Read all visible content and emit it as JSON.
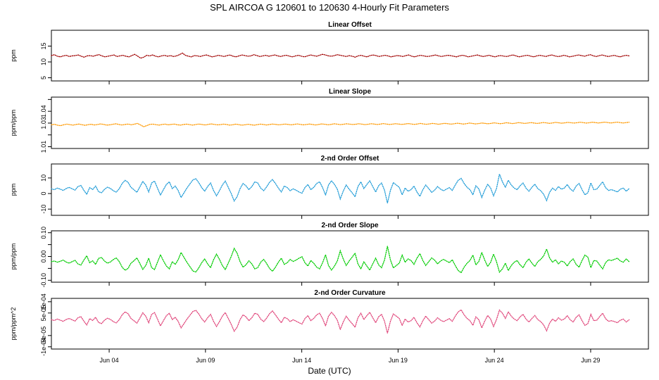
{
  "chart_data": {
    "type": "line",
    "title": "SPL   AIRCOA G   120601 to 120630   4-Hourly Fit Parameters",
    "xlabel": "Date (UTC)",
    "x_range": [
      "2012-06-01",
      "2012-07-02"
    ],
    "x_ticks": [
      "Jun 04",
      "Jun 09",
      "Jun 14",
      "Jun 19",
      "Jun 24",
      "Jun 29"
    ],
    "x_tick_dates": [
      "2012-06-04",
      "2012-06-09",
      "2012-06-14",
      "2012-06-19",
      "2012-06-24",
      "2012-06-29"
    ],
    "x_start": "2012-06-01",
    "x_end": "2012-07-01",
    "panels": [
      {
        "title": "Linear Offset",
        "ylabel": "ppm",
        "ylim": [
          4,
          20
        ],
        "yticks": [
          5,
          10,
          15
        ],
        "ytick_labels": [
          "5",
          "10",
          "15"
        ],
        "color": "#a00000",
        "series_style": "dotted",
        "values": [
          12.0,
          12.3,
          11.8,
          11.6,
          11.9,
          12.1,
          11.7,
          11.9,
          12.0,
          12.2,
          11.8,
          11.5,
          11.9,
          12.0,
          11.8,
          12.1,
          12.3,
          11.9,
          11.6,
          11.8,
          12.0,
          12.2,
          11.7,
          11.9,
          12.1,
          11.8,
          11.6,
          12.0,
          12.4,
          11.8,
          11.2,
          11.5,
          12.1,
          11.9,
          12.2,
          11.8,
          11.6,
          11.9,
          12.1,
          11.8,
          12.0,
          11.7,
          11.9,
          12.3,
          12.8,
          12.1,
          11.8,
          11.6,
          12.0,
          11.9,
          11.7,
          12.0,
          12.2,
          11.9,
          11.6,
          11.8,
          12.1,
          11.9,
          11.7,
          12.0,
          12.2,
          11.8,
          11.6,
          11.9,
          12.2,
          12.0,
          11.8,
          11.9,
          12.3,
          12.0,
          11.7,
          11.9,
          12.1,
          11.8,
          12.0,
          12.2,
          11.9,
          11.7,
          12.0,
          12.1,
          11.8,
          11.6,
          11.9,
          12.1,
          11.8,
          11.6,
          11.9,
          12.2,
          12.0,
          11.8,
          12.1,
          12.4,
          12.2,
          11.9,
          11.8,
          12.0,
          12.3,
          12.1,
          11.9,
          11.7,
          12.0,
          11.8,
          11.5,
          11.9,
          12.1,
          11.8,
          11.6,
          12.0,
          12.2,
          12.0,
          11.7,
          11.9,
          12.1,
          11.9,
          11.6,
          11.8,
          12.0,
          11.9,
          11.7,
          12.0,
          12.2,
          11.8,
          11.6,
          11.9,
          12.1,
          11.9,
          11.7,
          11.8,
          12.0,
          12.2,
          11.9,
          11.7,
          11.9,
          12.1,
          12.0,
          11.8,
          11.6,
          11.9,
          12.1,
          11.9,
          11.6,
          11.8,
          12.0,
          12.2,
          11.9,
          11.7,
          11.9,
          12.1,
          11.8,
          11.6,
          11.9,
          12.0,
          11.8,
          11.7,
          12.0,
          12.2,
          11.9,
          11.6,
          11.8,
          12.0,
          12.1,
          11.8,
          11.6,
          11.9,
          12.1,
          11.9,
          11.7,
          12.0,
          12.2,
          11.9,
          11.7,
          11.8,
          12.1,
          11.9,
          11.6,
          11.8,
          12.0,
          12.2,
          12.0,
          11.8,
          12.1,
          12.3,
          11.9,
          11.7,
          12.0,
          12.2,
          11.9,
          11.7,
          11.9,
          12.1,
          11.8,
          11.6,
          11.9,
          12.1,
          11.9
        ],
        "note": ""
      },
      {
        "title": "Linear Slope",
        "ylabel": "ppm/ppm",
        "ylim": [
          1.0085,
          1.052
        ],
        "yticks": [
          1.01,
          1.02,
          1.03,
          1.04,
          1.05
        ],
        "ytick_labels": [
          "1.01",
          "",
          "1.03",
          "1.04",
          ""
        ],
        "color": "#ff9900",
        "series_style": "dotted",
        "values": [
          1.0285,
          1.029,
          1.0282,
          1.0278,
          1.0286,
          1.0291,
          1.0287,
          1.0283,
          1.0288,
          1.0292,
          1.0286,
          1.0281,
          1.0287,
          1.029,
          1.0284,
          1.0288,
          1.0293,
          1.0289,
          1.0283,
          1.0285,
          1.029,
          1.0294,
          1.0288,
          1.0284,
          1.0289,
          1.0292,
          1.0286,
          1.0291,
          1.0297,
          1.0284,
          1.027,
          1.0278,
          1.0289,
          1.0291,
          1.0287,
          1.0283,
          1.0288,
          1.0291,
          1.0285,
          1.0289,
          1.0292,
          1.0286,
          1.0283,
          1.0288,
          1.0291,
          1.0287,
          1.0283,
          1.0288,
          1.0292,
          1.0288,
          1.0284,
          1.0289,
          1.0293,
          1.0289,
          1.0285,
          1.0287,
          1.0291,
          1.0288,
          1.0283,
          1.0286,
          1.0291,
          1.0287,
          1.0282,
          1.0286,
          1.029,
          1.0286,
          1.0282,
          1.0287,
          1.0291,
          1.0288,
          1.0284,
          1.0288,
          1.0292,
          1.0289,
          1.0285,
          1.0288,
          1.0292,
          1.0289,
          1.0285,
          1.0289,
          1.0293,
          1.0289,
          1.0285,
          1.0288,
          1.0292,
          1.0288,
          1.0284,
          1.0289,
          1.0293,
          1.029,
          1.0286,
          1.0289,
          1.0294,
          1.0291,
          1.0287,
          1.029,
          1.0294,
          1.0291,
          1.0288,
          1.029,
          1.0295,
          1.0291,
          1.0287,
          1.029,
          1.0295,
          1.0292,
          1.0288,
          1.0291,
          1.0296,
          1.0292,
          1.0288,
          1.0291,
          1.0295,
          1.0292,
          1.0289,
          1.0292,
          1.0296,
          1.0293,
          1.0289,
          1.0292,
          1.0297,
          1.0293,
          1.029,
          1.0293,
          1.0297,
          1.0294,
          1.029,
          1.0294,
          1.0298,
          1.0295,
          1.0291,
          1.0294,
          1.0299,
          1.0296,
          1.0292,
          1.0295,
          1.03,
          1.0297,
          1.0293,
          1.0296,
          1.0301,
          1.0298,
          1.0294,
          1.0297,
          1.0302,
          1.0299,
          1.0295,
          1.0298,
          1.0303,
          1.03,
          1.0296,
          1.0299,
          1.0304,
          1.0301,
          1.0297,
          1.03,
          1.0304,
          1.0301,
          1.0297,
          1.03,
          1.0305,
          1.0302,
          1.0298,
          1.0301,
          1.0306,
          1.0303,
          1.0299,
          1.0302,
          1.0306,
          1.0303,
          1.03,
          1.0303,
          1.0307,
          1.0304,
          1.03,
          1.0303,
          1.0307,
          1.0304,
          1.0301,
          1.0304,
          1.0308,
          1.0305,
          1.0301,
          1.0304,
          1.0308,
          1.0305,
          1.0301,
          1.0304,
          1.0307
        ]
      },
      {
        "title": "2-nd Order Offset",
        "ylabel": "ppm",
        "ylim": [
          -14,
          19
        ],
        "yticks": [
          -10,
          0,
          10
        ],
        "ytick_labels": [
          "-10",
          "0",
          "10"
        ],
        "color": "#1e9bd7",
        "series_style": "dotted",
        "values": [
          3.0,
          2.5,
          3.5,
          2.8,
          2.0,
          3.2,
          4.0,
          3.1,
          2.2,
          4.5,
          5.2,
          2.1,
          -0.5,
          3.8,
          2.6,
          4.8,
          1.2,
          0.5,
          2.7,
          4.1,
          3.3,
          1.8,
          0.9,
          3.0,
          6.5,
          8.5,
          7.2,
          4.0,
          2.5,
          0.8,
          4.2,
          7.8,
          5.5,
          1.0,
          6.8,
          8.0,
          3.5,
          -1.0,
          2.5,
          5.8,
          7.5,
          3.2,
          4.8,
          2.0,
          -2.5,
          0.5,
          3.6,
          6.2,
          8.8,
          9.5,
          7.0,
          3.8,
          1.5,
          4.5,
          6.8,
          2.0,
          -1.5,
          1.8,
          5.5,
          8.0,
          4.0,
          0.0,
          -4.8,
          -2.0,
          3.2,
          6.5,
          5.0,
          2.5,
          4.5,
          7.5,
          6.8,
          3.5,
          1.8,
          4.2,
          7.2,
          9.0,
          6.5,
          3.5,
          1.0,
          4.8,
          3.8,
          1.8,
          3.0,
          2.2,
          1.0,
          0.2,
          3.8,
          5.8,
          2.5,
          4.0,
          6.5,
          7.5,
          3.8,
          -1.0,
          5.5,
          8.2,
          6.0,
          2.8,
          -3.5,
          1.5,
          5.5,
          2.8,
          0.5,
          -2.0,
          4.5,
          7.5,
          3.2,
          5.8,
          8.2,
          4.5,
          1.0,
          5.0,
          6.8,
          2.2,
          -6.2,
          2.0,
          7.0,
          5.5,
          4.0,
          -0.8,
          3.5,
          1.5,
          2.5,
          4.8,
          1.0,
          -1.8,
          2.5,
          5.5,
          3.2,
          0.8,
          2.2,
          4.5,
          2.8,
          1.8,
          2.8,
          3.8,
          2.0,
          5.5,
          8.5,
          9.8,
          6.5,
          4.0,
          2.5,
          -0.8,
          5.0,
          3.0,
          -2.5,
          2.2,
          6.0,
          3.5,
          -1.5,
          3.2,
          12.5,
          7.5,
          4.0,
          8.5,
          5.5,
          3.5,
          2.5,
          5.0,
          6.8,
          3.5,
          1.5,
          4.0,
          6.0,
          3.2,
          1.8,
          -0.5,
          -4.5,
          0.8,
          3.5,
          2.0,
          4.5,
          2.8,
          3.5,
          5.8,
          3.0,
          1.5,
          4.8,
          6.5,
          2.5,
          -0.8,
          0.5,
          6.8,
          2.5,
          2.8,
          5.2,
          7.5,
          3.8,
          2.0,
          2.5,
          1.8,
          1.0,
          2.8,
          3.5,
          1.5,
          3.2
        ]
      },
      {
        "title": "2-nd Order Slope",
        "ylabel": "ppm/ppm",
        "ylim": [
          -0.108,
          0.108
        ],
        "yticks": [
          -0.1,
          -0.05,
          0.0,
          0.05,
          0.1
        ],
        "ytick_labels": [
          "-0.10",
          "",
          "0.00",
          "",
          "0.10"
        ],
        "color": "#00cc00",
        "series_style": "dotted",
        "values": [
          -0.022,
          -0.019,
          -0.024,
          -0.02,
          -0.015,
          -0.023,
          -0.028,
          -0.022,
          -0.016,
          -0.031,
          -0.036,
          -0.015,
          0.003,
          -0.026,
          -0.018,
          -0.033,
          -0.008,
          -0.004,
          -0.019,
          -0.028,
          -0.023,
          -0.013,
          -0.006,
          -0.021,
          -0.045,
          -0.058,
          -0.05,
          -0.028,
          -0.018,
          -0.006,
          -0.029,
          -0.054,
          -0.038,
          -0.007,
          -0.047,
          -0.055,
          -0.024,
          0.007,
          -0.018,
          -0.04,
          -0.052,
          -0.022,
          -0.033,
          -0.014,
          0.017,
          -0.004,
          -0.025,
          -0.043,
          -0.061,
          -0.065,
          -0.048,
          -0.026,
          -0.01,
          -0.031,
          -0.047,
          -0.014,
          0.01,
          -0.012,
          -0.038,
          -0.055,
          -0.028,
          0.0,
          0.034,
          0.014,
          -0.022,
          -0.045,
          -0.035,
          -0.018,
          -0.031,
          -0.052,
          -0.047,
          -0.024,
          -0.012,
          -0.029,
          -0.05,
          -0.062,
          -0.045,
          -0.024,
          -0.007,
          -0.033,
          -0.026,
          -0.012,
          -0.021,
          -0.015,
          -0.007,
          -0.001,
          -0.026,
          -0.04,
          -0.017,
          -0.028,
          -0.045,
          -0.052,
          -0.026,
          0.007,
          -0.038,
          -0.057,
          -0.041,
          -0.019,
          0.024,
          -0.01,
          -0.038,
          -0.019,
          -0.003,
          0.014,
          -0.031,
          -0.052,
          -0.022,
          -0.04,
          -0.057,
          -0.031,
          -0.007,
          -0.035,
          -0.047,
          -0.015,
          0.043,
          -0.014,
          -0.048,
          -0.038,
          -0.028,
          0.006,
          -0.024,
          -0.01,
          -0.017,
          -0.033,
          -0.007,
          0.012,
          -0.017,
          -0.038,
          -0.022,
          -0.006,
          -0.015,
          -0.031,
          -0.019,
          -0.012,
          -0.019,
          -0.026,
          -0.014,
          -0.038,
          -0.059,
          -0.068,
          -0.045,
          -0.028,
          -0.017,
          0.006,
          -0.035,
          -0.021,
          0.017,
          -0.015,
          -0.042,
          -0.024,
          0.01,
          -0.022,
          -0.066,
          -0.052,
          -0.028,
          -0.059,
          -0.038,
          -0.024,
          -0.017,
          -0.035,
          -0.047,
          -0.024,
          -0.01,
          -0.028,
          -0.042,
          -0.022,
          -0.012,
          0.003,
          0.031,
          -0.006,
          -0.024,
          -0.014,
          -0.031,
          -0.019,
          -0.024,
          -0.04,
          -0.021,
          -0.01,
          -0.033,
          -0.045,
          -0.017,
          0.006,
          -0.003,
          -0.047,
          -0.017,
          -0.019,
          -0.036,
          -0.052,
          -0.026,
          -0.014,
          -0.017,
          -0.012,
          -0.007,
          -0.019,
          -0.024,
          -0.01,
          -0.022
        ]
      },
      {
        "title": "2-nd Order Curvature",
        "ylabel": "ppm/ppm^2",
        "ylim": [
          -0.00011,
          0.000115
        ],
        "yticks": [
          -0.0001,
          -5e-05,
          5e-05,
          0.0001
        ],
        "ytick_labels": [
          "-1e-04",
          "-5e-05",
          "5e-05",
          "1e-04"
        ],
        "color": "#e0457a",
        "series_style": "dotted",
        "values": [
          2e-05,
          1.7e-05,
          2.3e-05,
          1.8e-05,
          1.3e-05,
          2.1e-05,
          2.6e-05,
          2e-05,
          1.4e-05,
          2.9e-05,
          3.4e-05,
          1.4e-05,
          -3e-06,
          2.5e-05,
          1.7e-05,
          3.1e-05,
          8e-06,
          3e-06,
          1.8e-05,
          2.7e-05,
          2.2e-05,
          1.2e-05,
          6e-06,
          2e-05,
          4.2e-05,
          5.5e-05,
          4.7e-05,
          2.6e-05,
          1.6e-05,
          5e-06,
          2.7e-05,
          5.1e-05,
          3.6e-05,
          7e-06,
          4.4e-05,
          5.2e-05,
          2.3e-05,
          -7e-06,
          1.6e-05,
          3.8e-05,
          4.9e-05,
          2.1e-05,
          3.1e-05,
          1.3e-05,
          -1.6e-05,
          3e-06,
          2.3e-05,
          4e-05,
          5.7e-05,
          6.2e-05,
          4.6e-05,
          2.5e-05,
          1e-05,
          2.9e-05,
          4.4e-05,
          1.3e-05,
          -1e-05,
          1.2e-05,
          3.6e-05,
          5.2e-05,
          2.6e-05,
          0.0,
          -3.1e-05,
          -1.3e-05,
          2.1e-05,
          4.2e-05,
          3.3e-05,
          1.6e-05,
          2.9e-05,
          4.9e-05,
          4.4e-05,
          2.3e-05,
          1.2e-05,
          2.7e-05,
          4.7e-05,
          5.9e-05,
          4.2e-05,
          2.3e-05,
          7e-06,
          3.1e-05,
          2.5e-05,
          1.2e-05,
          2e-05,
          1.4e-05,
          7e-06,
          1e-06,
          2.5e-05,
          3.8e-05,
          1.6e-05,
          2.6e-05,
          4.2e-05,
          4.9e-05,
          2.5e-05,
          -7e-06,
          3.6e-05,
          5.3e-05,
          3.9e-05,
          1.8e-05,
          -2.3e-05,
          1e-05,
          3.6e-05,
          1.8e-05,
          3e-06,
          -1.3e-05,
          2.9e-05,
          4.9e-05,
          2.1e-05,
          3.8e-05,
          5.3e-05,
          2.9e-05,
          7e-06,
          3.3e-05,
          4.4e-05,
          1.4e-05,
          -4e-05,
          1.3e-05,
          4.6e-05,
          3.6e-05,
          2.6e-05,
          -5e-06,
          2.3e-05,
          1e-05,
          1.6e-05,
          3.1e-05,
          7e-06,
          -1.2e-05,
          1.6e-05,
          3.6e-05,
          2.1e-05,
          5e-06,
          1.4e-05,
          2.9e-05,
          1.8e-05,
          1.2e-05,
          1.8e-05,
          2.5e-05,
          1.3e-05,
          3.6e-05,
          5.5e-05,
          6.4e-05,
          4.2e-05,
          2.6e-05,
          1.6e-05,
          -5e-06,
          3.3e-05,
          2e-05,
          -1.6e-05,
          1.4e-05,
          3.9e-05,
          2.3e-05,
          -1e-05,
          2.1e-05,
          6.3e-05,
          4.9e-05,
          2.6e-05,
          5.5e-05,
          3.6e-05,
          2.3e-05,
          1.6e-05,
          3.3e-05,
          4.4e-05,
          2.3e-05,
          1e-05,
          2.6e-05,
          3.9e-05,
          2.1e-05,
          1.2e-05,
          -3e-06,
          -2.9e-05,
          5e-06,
          2.3e-05,
          1.3e-05,
          2.9e-05,
          1.8e-05,
          2.3e-05,
          3.8e-05,
          2e-05,
          1e-05,
          3.1e-05,
          4.2e-05,
          1.6e-05,
          -5e-06,
          3e-06,
          4.4e-05,
          1.6e-05,
          1.8e-05,
          3.4e-05,
          4.9e-05,
          2.5e-05,
          1.3e-05,
          1.6e-05,
          1.2e-05,
          7e-06,
          1.8e-05,
          2.3e-05,
          1e-05,
          2e-05
        ]
      }
    ]
  }
}
